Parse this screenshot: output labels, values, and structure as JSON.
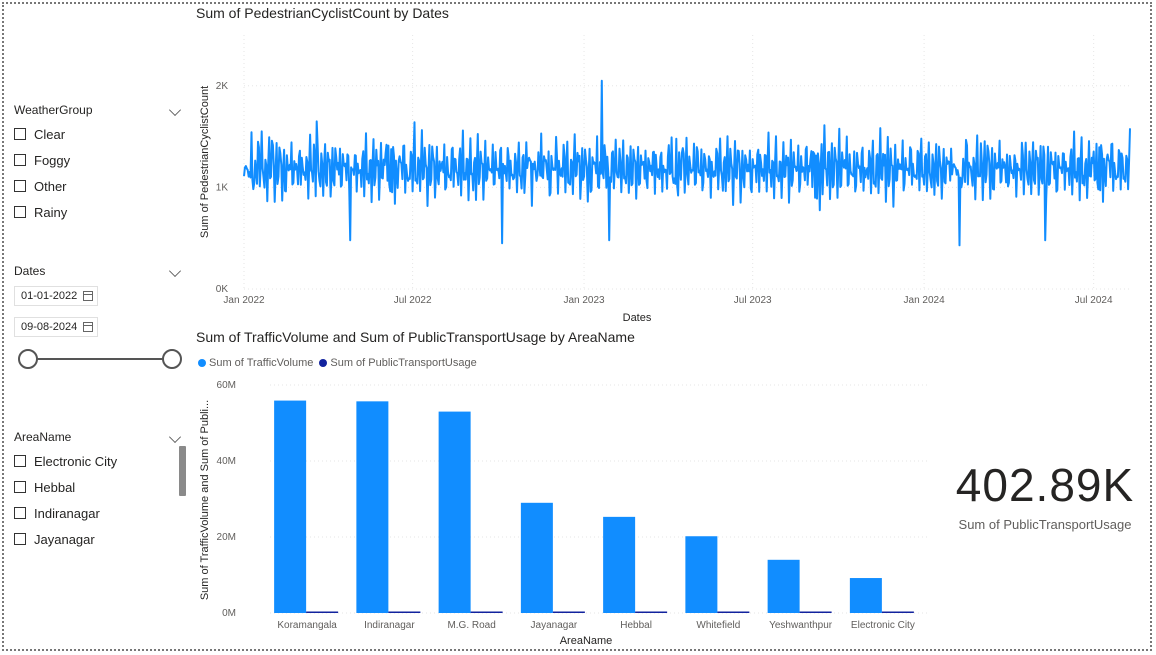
{
  "slicers": {
    "weather": {
      "title": "WeatherGroup",
      "items": [
        "Clear",
        "Foggy",
        "Other",
        "Rainy"
      ]
    },
    "dates": {
      "title": "Dates",
      "start": "01-01-2022",
      "end": "09-08-2024"
    },
    "area": {
      "title": "AreaName",
      "items": [
        "Electronic City",
        "Hebbal",
        "Indiranagar",
        "Jayanagar"
      ]
    }
  },
  "line_visual": {
    "title": "Sum of PedestrianCyclistCount by Dates"
  },
  "bar_visual": {
    "title": "Sum of TrafficVolume and Sum of PublicTransportUsage by AreaName",
    "legend": [
      {
        "label": "Sum of TrafficVolume",
        "color": "#118DFF"
      },
      {
        "label": "Sum of PublicTransportUsage",
        "color": "#12239E"
      }
    ]
  },
  "card": {
    "value": "402.89K",
    "label": "Sum of PublicTransportUsage"
  },
  "chart_data": [
    {
      "type": "line",
      "title": "Sum of PedestrianCyclistCount by Dates",
      "xlabel": "Dates",
      "ylabel": "Sum of PedestrianCyclistCount",
      "x_ticks": [
        "Jan 2022",
        "Jul 2022",
        "Jan 2023",
        "Jul 2023",
        "Jan 2024",
        "Jul 2024"
      ],
      "y_ticks": [
        "0K",
        "1K",
        "2K"
      ],
      "ylim": [
        0,
        2500
      ],
      "x_range": [
        "2022-01-01",
        "2024-08-09"
      ],
      "color": "#118DFF",
      "grid": true,
      "series": [
        {
          "values": [
            1290,
            1240,
            1120,
            1330,
            1180,
            980,
            1260,
            1070,
            1380,
            1150,
            920,
            1210,
            1300,
            1040,
            1170,
            1450,
            1260,
            1110,
            1190,
            1380,
            1250,
            1020,
            1160,
            1300,
            1100,
            990,
            1220,
            1350,
            1180,
            1060,
            1280,
            1470,
            1130,
            1010,
            1200,
            1320,
            1150,
            1090,
            1240,
            1420,
            1170,
            1050,
            1210,
            1280,
            1110,
            970,
            1190,
            1300,
            1140,
            1060,
            1250,
            1380,
            1200,
            1080,
            1160,
            1310,
            1230,
            1040,
            1130,
            1270,
            1190,
            1090,
            1220,
            1360,
            1150,
            1040,
            1200,
            1290,
            1100,
            980,
            1170,
            1340,
            1220,
            1070,
            1210,
            1440,
            1180,
            1030,
            1150,
            1270,
            1240,
            1010,
            1190,
            1380,
            1130,
            1060,
            1230,
            1300,
            1160,
            990,
            1180,
            1330,
            1210,
            1080,
            1150,
            1290,
            1200,
            1020,
            1250,
            1400,
            1140,
            1070,
            1190,
            1310,
            1170,
            1050,
            1220,
            1360,
            1200,
            1090,
            1160,
            1280,
            1130,
            1010,
            1210,
            1350,
            1190,
            1060,
            1240,
            1300,
            1160,
            1040,
            1180,
            1320,
            1210,
            1080,
            1150,
            1290,
            1230,
            1020,
            1180,
            1370,
            1150,
            1070,
            1210,
            1300,
            1170,
            990,
            1240,
            1340,
            1120,
            1060,
            1200,
            1280,
            1190,
            1040,
            1160,
            1330,
            1220,
            1080,
            1130,
            1310
          ],
          "markers": [
            {
              "date": "2022-03-20",
              "value": 1650,
              "note": "spike"
            },
            {
              "date": "2022-04-25",
              "value": 480,
              "note": "dip"
            },
            {
              "date": "2022-10-05",
              "value": 450,
              "note": "dip"
            },
            {
              "date": "2023-01-20",
              "value": 2050,
              "note": "peak"
            },
            {
              "date": "2023-01-28",
              "value": 480,
              "note": "dip"
            },
            {
              "date": "2024-02-08",
              "value": 430,
              "note": "dip"
            },
            {
              "date": "2024-05-10",
              "value": 480,
              "note": "dip"
            }
          ]
        }
      ]
    },
    {
      "type": "bar",
      "title": "Sum of TrafficVolume and Sum of PublicTransportUsage by AreaName",
      "xlabel": "AreaName",
      "ylabel": "Sum of TrafficVolume and Sum of Publi...",
      "categories": [
        "Koramangala",
        "Indiranagar",
        "M.G. Road",
        "Jayanagar",
        "Hebbal",
        "Whitefield",
        "Yeshwanthpur",
        "Electronic City"
      ],
      "y_ticks": [
        "0M",
        "20M",
        "40M",
        "60M"
      ],
      "ylim": [
        0,
        60000000
      ],
      "legend_position": "top-left",
      "grid": true,
      "series": [
        {
          "name": "Sum of TrafficVolume",
          "color": "#118DFF",
          "values": [
            55900000,
            55700000,
            53000000,
            29000000,
            25300000,
            20200000,
            14000000,
            9200000
          ]
        },
        {
          "name": "Sum of PublicTransportUsage",
          "color": "#12239E",
          "values": [
            90000,
            88000,
            80000,
            40000,
            35000,
            30000,
            22000,
            17890
          ]
        }
      ]
    }
  ]
}
